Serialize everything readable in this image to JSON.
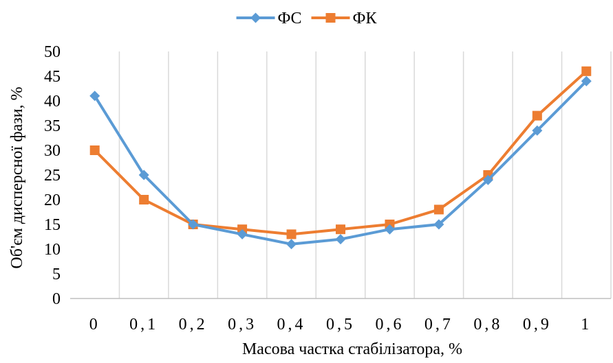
{
  "chart_data": {
    "type": "line",
    "title": "",
    "xlabel": "Масова частка стабілізатора, %",
    "ylabel": "Об'єм дисперсної фази, %",
    "categories": [
      "0",
      "0,1",
      "0,2",
      "0,3",
      "0,4",
      "0,5",
      "0,6",
      "0,7",
      "0,8",
      "0,9",
      "1"
    ],
    "ylim": [
      0,
      50
    ],
    "yticks": [
      "0",
      "5",
      "10",
      "15",
      "20",
      "25",
      "30",
      "35",
      "40",
      "45",
      "50"
    ],
    "grid": "vertical",
    "legend": "top-center",
    "series": [
      {
        "name": "ФС",
        "color": "#5B9BD5",
        "marker": "diamond",
        "values": [
          41,
          25,
          15,
          13,
          11,
          12,
          14,
          15,
          24,
          34,
          44
        ]
      },
      {
        "name": "ФК",
        "color": "#ED7D31",
        "marker": "square",
        "values": [
          30,
          20,
          15,
          14,
          13,
          14,
          15,
          18,
          25,
          37,
          46
        ]
      }
    ]
  }
}
